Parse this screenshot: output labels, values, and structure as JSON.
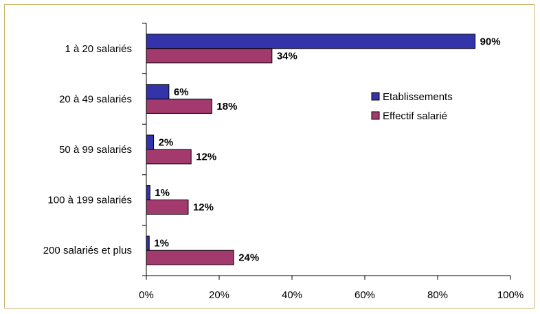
{
  "chart_data": {
    "type": "bar",
    "orientation": "horizontal",
    "title": "",
    "xlabel": "",
    "ylabel": "",
    "categories": [
      "1 à 20 salariés",
      "20 à 49 salariés",
      "50 à 99 salariés",
      "100 à 199 salariés",
      "200 salariés et plus"
    ],
    "series": [
      {
        "name": "Etablissements",
        "color": "#3333aa",
        "values": [
          90,
          6,
          2,
          1,
          1
        ],
        "labels": [
          "90%",
          "6%",
          "2%",
          "1%",
          "1%"
        ],
        "bar_values": [
          90.3,
          6.2,
          2,
          1,
          0.8
        ]
      },
      {
        "name": "Effectif salarié",
        "color": "#a23a6e",
        "values": [
          34,
          18,
          12,
          12,
          24
        ],
        "labels": [
          "34%",
          "18%",
          "12%",
          "12%",
          "24%"
        ],
        "bar_values": [
          34.5,
          18,
          12.3,
          11.5,
          24
        ]
      }
    ],
    "xlim": [
      0,
      100
    ],
    "xticks": [
      0,
      20,
      40,
      60,
      80,
      100
    ],
    "xtick_labels": [
      "0%",
      "20%",
      "40%",
      "60%",
      "80%",
      "100%"
    ],
    "grid": false,
    "legend_position": "right"
  }
}
